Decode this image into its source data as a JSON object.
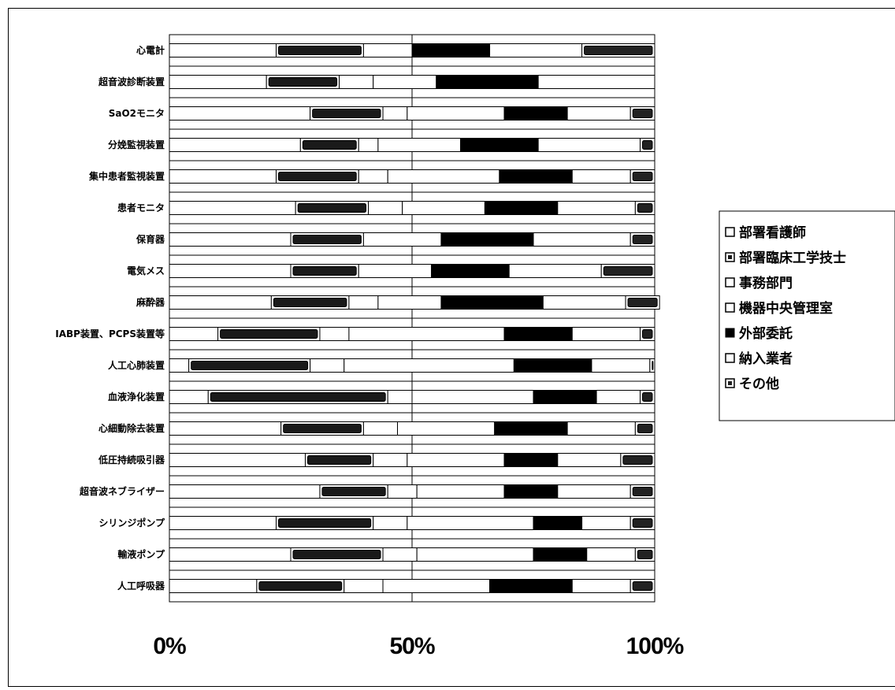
{
  "chart_data": {
    "type": "bar",
    "orientation": "horizontal",
    "stacked": true,
    "percent": true,
    "categories": [
      "心電計",
      "超音波診断装置",
      "SaO2モニタ",
      "分娩監視装置",
      "集中患者監視装置",
      "患者モニタ",
      "保育器",
      "電気メス",
      "麻酔器",
      "IABP装置、PCPS装置等",
      "人工心肺装置",
      "血液浄化装置",
      "心細動除去装置",
      "低圧持続吸引器",
      "超音波ネブライザー",
      "シリンジポンプ",
      "輸液ポンプ",
      "人工呼吸器"
    ],
    "series": [
      {
        "name": "部署看護師",
        "color": "#ffffff",
        "values": [
          22,
          20,
          29,
          27,
          22,
          26,
          25,
          25,
          21,
          10,
          4,
          8,
          23,
          28,
          31,
          22,
          25,
          18
        ]
      },
      {
        "name": "部署臨床工学技士",
        "color": "#1a1a1a",
        "values": [
          18,
          15,
          15,
          12,
          17,
          15,
          15,
          14,
          16,
          21,
          25,
          37,
          17,
          14,
          14,
          20,
          19,
          18
        ]
      },
      {
        "name": "事務部門",
        "color": "#ffffff",
        "values": [
          10,
          7,
          5,
          4,
          6,
          7,
          0,
          0,
          6,
          6,
          7,
          5,
          7,
          7,
          6,
          7,
          7,
          8
        ]
      },
      {
        "name": "機器中央管理室",
        "color": "#ffffff",
        "values": [
          0,
          13,
          20,
          17,
          23,
          17,
          16,
          15,
          13,
          32,
          35,
          25,
          20,
          20,
          18,
          26,
          24,
          22
        ]
      },
      {
        "name": "外部委託",
        "color": "#000000",
        "values": [
          16,
          21,
          13,
          16,
          15,
          15,
          19,
          16,
          21,
          14,
          16,
          13,
          15,
          11,
          11,
          10,
          11,
          17
        ]
      },
      {
        "name": "納入業者",
        "color": "#ffffff",
        "values": [
          19,
          24,
          13,
          21,
          12,
          16,
          20,
          19,
          17,
          14,
          12,
          9,
          14,
          13,
          15,
          10,
          10,
          12
        ]
      },
      {
        "name": "その他",
        "color": "#222222",
        "values": [
          15,
          0,
          5,
          3,
          5,
          4,
          5,
          11,
          7,
          3,
          1,
          3,
          4,
          7,
          5,
          5,
          4,
          5
        ]
      }
    ],
    "xlim": [
      0,
      100
    ],
    "xtick_labels": [
      "0%",
      "50%",
      "100%"
    ],
    "legend_position": "right",
    "grid": false
  }
}
